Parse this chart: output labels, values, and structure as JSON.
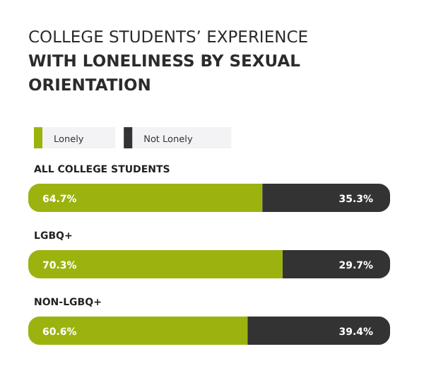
{
  "chart_data": {
    "type": "bar",
    "orientation": "horizontal",
    "stacked": true,
    "title": "COLLEGE STUDENTS’ EXPERIENCE WITH LONELINESS BY SEXUAL ORIENTATION",
    "categories": [
      "ALL COLLEGE STUDENTS",
      "LGBQ+",
      "NON-LGBQ+"
    ],
    "legend": "top left",
    "series": [
      {
        "name": "Lonely",
        "color": "#9cb30f",
        "values": [
          64.7,
          70.3,
          60.6
        ],
        "value_labels": [
          "64.7%",
          "70.3%",
          "60.6%"
        ]
      },
      {
        "name": "Not Lonely",
        "color": "#333333",
        "values": [
          35.3,
          29.7,
          39.4
        ],
        "value_labels": [
          "35.3%",
          "29.7%",
          "39.4%"
        ]
      }
    ]
  }
}
